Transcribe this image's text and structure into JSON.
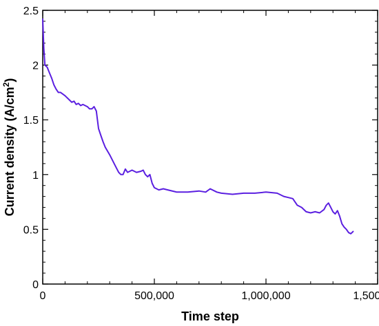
{
  "chart_data": {
    "type": "line",
    "xlabel": "Time step",
    "ylabel": "Current density (A/cm",
    "ylabel_sup": "2",
    "ylabel_suffix": ")",
    "xlim": [
      0,
      1500000
    ],
    "ylim": [
      0,
      2.5
    ],
    "xticks": [
      0,
      500000,
      1000000,
      1500000
    ],
    "xtick_labels": [
      "0",
      "500,000",
      "1,000,000",
      "1,500,000"
    ],
    "yticks": [
      0,
      0.5,
      1,
      1.5,
      2,
      2.5
    ],
    "ytick_labels": [
      "0",
      "0.5",
      "1",
      "1.5",
      "2",
      "2.5"
    ],
    "grid": false,
    "series": [
      {
        "color": "#5a1ee0",
        "x": [
          0,
          5000,
          10000,
          20000,
          30000,
          40000,
          50000,
          60000,
          70000,
          80000,
          100000,
          120000,
          130000,
          140000,
          150000,
          160000,
          170000,
          180000,
          200000,
          210000,
          220000,
          230000,
          240000,
          245000,
          250000,
          260000,
          270000,
          280000,
          300000,
          320000,
          330000,
          340000,
          350000,
          360000,
          370000,
          380000,
          390000,
          400000,
          420000,
          440000,
          450000,
          460000,
          470000,
          480000,
          490000,
          500000,
          520000,
          540000,
          560000,
          600000,
          650000,
          700000,
          730000,
          750000,
          780000,
          800000,
          850000,
          900000,
          950000,
          1000000,
          1050000,
          1080000,
          1100000,
          1120000,
          1140000,
          1160000,
          1180000,
          1200000,
          1220000,
          1240000,
          1260000,
          1270000,
          1280000,
          1290000,
          1300000,
          1310000,
          1320000,
          1330000,
          1340000,
          1350000,
          1360000,
          1370000,
          1380000,
          1390000
        ],
        "y": [
          2.42,
          2.15,
          2.0,
          1.98,
          1.93,
          1.88,
          1.82,
          1.78,
          1.75,
          1.75,
          1.72,
          1.68,
          1.66,
          1.67,
          1.64,
          1.65,
          1.63,
          1.64,
          1.62,
          1.6,
          1.6,
          1.62,
          1.58,
          1.5,
          1.42,
          1.36,
          1.3,
          1.25,
          1.18,
          1.1,
          1.06,
          1.02,
          1.0,
          1.0,
          1.05,
          1.02,
          1.03,
          1.04,
          1.02,
          1.03,
          1.04,
          1.0,
          0.98,
          1.0,
          0.92,
          0.88,
          0.86,
          0.87,
          0.86,
          0.84,
          0.84,
          0.85,
          0.84,
          0.87,
          0.84,
          0.83,
          0.82,
          0.83,
          0.83,
          0.84,
          0.83,
          0.8,
          0.79,
          0.78,
          0.72,
          0.7,
          0.66,
          0.65,
          0.66,
          0.65,
          0.68,
          0.72,
          0.74,
          0.7,
          0.66,
          0.64,
          0.67,
          0.62,
          0.55,
          0.52,
          0.5,
          0.47,
          0.46,
          0.48
        ]
      }
    ]
  }
}
